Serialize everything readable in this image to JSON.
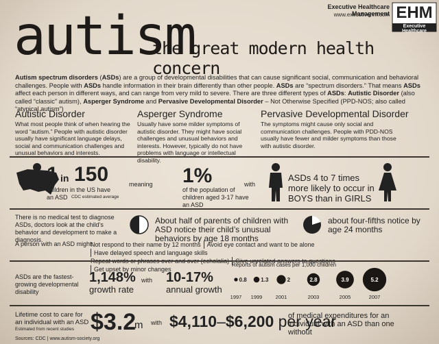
{
  "header": {
    "company": "Executive Healthcare Management",
    "url": "www.executivehm.com",
    "logo": "EHM",
    "logo_sub": "Executive Healthcare",
    "title": "autism",
    "subtitle": "the great modern health concern"
  },
  "intro": {
    "parts": [
      {
        "text": "Autism spectrum disorders",
        "bold": true
      },
      {
        "text": " (",
        "bold": false
      },
      {
        "text": "ASDs",
        "bold": true
      },
      {
        "text": ") are a group of developmental disabilities that can cause significant social, communication and behavioral challenges. People with ",
        "bold": false
      },
      {
        "text": "ASDs",
        "bold": true
      },
      {
        "text": " handle information in their brain differently than other people.  ",
        "bold": false
      },
      {
        "text": "ASDs",
        "bold": true
      },
      {
        "text": " are “spectrum disorders.” That means ",
        "bold": false
      },
      {
        "text": "ASDs",
        "bold": true
      },
      {
        "text": " affect each person in different ways, and can range from very mild to severe.  There are three different types of ",
        "bold": false
      },
      {
        "text": "ASDs",
        "bold": true
      },
      {
        "text": ":  ",
        "bold": false
      },
      {
        "text": "Autistic Disorder",
        "bold": true
      },
      {
        "text": " (also called “classic” autism), ",
        "bold": false
      },
      {
        "text": "Asperger Syndrome",
        "bold": true
      },
      {
        "text": " and ",
        "bold": false
      },
      {
        "text": "Pervasive Developmental Disorder",
        "bold": true
      },
      {
        "text": " – Not Otherwise Specified (PPD-NOS; also called “atypical autism”)",
        "bold": false
      }
    ]
  },
  "types": [
    {
      "name": "Autistic Disorder",
      "text": "What most people think of when hearing the word “autism.” People with autistic disorder usually have significant language delays, social and communication challenges and unusual behaviors and interests."
    },
    {
      "name": "Asperger Syndrome",
      "text": "Usually have some milder symptoms of autistic disorder. They might have social challenges and unusual behaviors and interests. However, typically do not have problems with language or intellectual disability."
    },
    {
      "name": "Pervasive Developmental Disorder",
      "text": "The symptoms might cause only social and communication challenges.  People with PDD-NOS usually have fewer and milder symptoms than those with autistic disorder."
    }
  ],
  "prevalence": {
    "one": "1",
    "in": "in",
    "count": "150",
    "line1": "children in the US have",
    "line2": "an ASD",
    "note": "CDC estimated average",
    "meaning": "meaning",
    "percent": "1%",
    "percent_text": "of the population of children aged 3-17 have an ASD",
    "with": "with",
    "boys_text": "ASDs 4 to 7 times more likely to occur in BOYS than in GIRLS"
  },
  "diagnosis": {
    "text": "There is no medical test to diagnose ASDs, doctors look at the child’s behavior and development to make a diagnosis.",
    "half": "About half of parents of children with ASD notice their child’s unusual behaviors by age 18 months",
    "four_fifths": "about four-fifths notice by age 24 months"
  },
  "signs": {
    "label": "A person with an ASD might:",
    "items": [
      "Not respond to their name by 12 months",
      "Avoid eye contact and want to be alone",
      "Have delayed speech and language skills",
      "Repeat words or phrases over and over (echolalia)",
      "Give unrelated answers to questions",
      "Get upset by minor changes"
    ]
  },
  "growth": {
    "text": "ASDs are the fastest-growing developmental disability",
    "rate": "1,148%",
    "rate_label": "growth rate",
    "with": "with",
    "annual": "10-17%",
    "annual_label": "annual growth"
  },
  "cases_chart": {
    "title": "Reports of autism cases per 1,000 children",
    "categories": [
      "1997",
      "1999",
      "2001",
      "2003",
      "2005",
      "2007"
    ],
    "values": [
      0.8,
      1.3,
      2,
      2.8,
      3.9,
      5.2
    ]
  },
  "cost": {
    "text": "Lifetime cost to care for an individual with an ASD",
    "note": "Estimated from recent studies",
    "amount": "$3.2",
    "unit": "m",
    "with": "with",
    "low": "$4,110",
    "dash": "–",
    "high": "$6,200",
    "per": "per year",
    "expenditure": "of medical expenditures for an individual with an ASD than one without"
  },
  "footer": {
    "sources": "Sources: CDC | www.autism-society.org"
  }
}
